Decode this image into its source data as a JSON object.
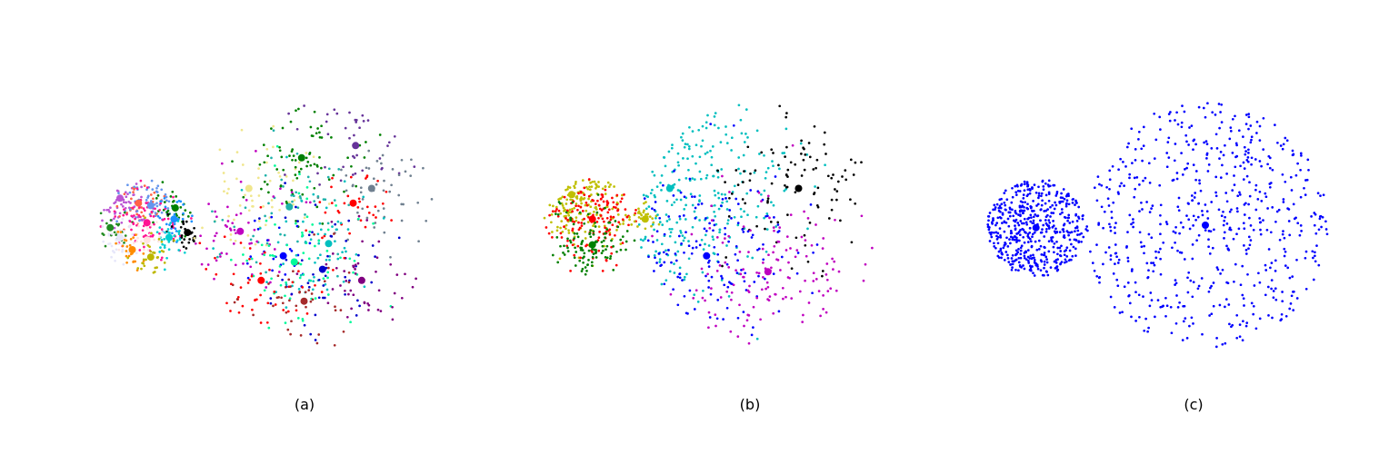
{
  "chart_data": [
    {
      "type": "scatter",
      "label": "(a)",
      "point_size": "small",
      "center_size": "large",
      "clusters": [
        {
          "color": "#ba55d3",
          "center": [
            -1.6,
            -0.22
          ],
          "cloud": "small",
          "spread": 0.12,
          "n": 50
        },
        {
          "color": "#ff6347",
          "center": [
            -1.45,
            -0.18
          ],
          "cloud": "small",
          "spread": 0.1,
          "n": 35
        },
        {
          "color": "#6495ed",
          "center": [
            -1.35,
            -0.16
          ],
          "cloud": "small",
          "spread": 0.12,
          "n": 55
        },
        {
          "color": "#008000",
          "center": [
            -1.15,
            -0.14
          ],
          "cloud": "small",
          "spread": 0.1,
          "n": 35
        },
        {
          "color": "#ff1493",
          "center": [
            -1.38,
            -0.02
          ],
          "cloud": "small",
          "spread": 0.13,
          "n": 75
        },
        {
          "color": "#1e90ff",
          "center": [
            -1.16,
            -0.05
          ],
          "cloud": "small",
          "spread": 0.08,
          "n": 30
        },
        {
          "color": "#000000",
          "center": [
            -1.05,
            0.06
          ],
          "cloud": "small",
          "spread": 0.08,
          "n": 35
        },
        {
          "color": "#00ced1",
          "center": [
            -1.2,
            0.1
          ],
          "cloud": "small",
          "spread": 0.08,
          "n": 30
        },
        {
          "color": "#228b22",
          "center": [
            -1.68,
            0.02
          ],
          "cloud": "small",
          "spread": 0.08,
          "n": 20
        },
        {
          "color": "#e6e6fa",
          "center": [
            -1.6,
            0.1
          ],
          "cloud": "small",
          "spread": 0.09,
          "n": 40
        },
        {
          "color": "#ffe4e1",
          "center": [
            -1.38,
            0.12
          ],
          "cloud": "small",
          "spread": 0.08,
          "n": 25
        },
        {
          "color": "#ff8c00",
          "center": [
            -1.5,
            0.2
          ],
          "cloud": "small",
          "spread": 0.07,
          "n": 25
        },
        {
          "color": "#bdb700",
          "center": [
            -1.35,
            0.26
          ],
          "cloud": "small",
          "spread": 0.08,
          "n": 30
        },
        {
          "color": "#f0e68c",
          "center": [
            -0.55,
            -0.3
          ],
          "cloud": "large",
          "spread": 0.28,
          "n": 60
        },
        {
          "color": "#008000",
          "center": [
            -0.12,
            -0.55
          ],
          "cloud": "large",
          "spread": 0.3,
          "n": 75
        },
        {
          "color": "#663399",
          "center": [
            0.32,
            -0.65
          ],
          "cloud": "large",
          "spread": 0.22,
          "n": 40
        },
        {
          "color": "#708090",
          "center": [
            0.45,
            -0.3
          ],
          "cloud": "large",
          "spread": 0.24,
          "n": 50
        },
        {
          "color": "#ff0000",
          "center": [
            0.3,
            -0.18
          ],
          "cloud": "large",
          "spread": 0.14,
          "n": 30
        },
        {
          "color": "#20b2aa",
          "center": [
            -0.22,
            -0.15
          ],
          "cloud": "large",
          "spread": 0.28,
          "n": 55
        },
        {
          "color": "#c000c0",
          "center": [
            -0.62,
            0.05
          ],
          "cloud": "large",
          "spread": 0.25,
          "n": 55
        },
        {
          "color": "#0000ff",
          "center": [
            -0.27,
            0.25
          ],
          "cloud": "large",
          "spread": 0.15,
          "n": 25
        },
        {
          "color": "#00fa9a",
          "center": [
            -0.18,
            0.3
          ],
          "cloud": "large",
          "spread": 0.3,
          "n": 70
        },
        {
          "color": "#00bfbf",
          "center": [
            0.1,
            0.15
          ],
          "cloud": "large",
          "spread": 0.25,
          "n": 55
        },
        {
          "color": "#0000cd",
          "center": [
            0.05,
            0.36
          ],
          "cloud": "large",
          "spread": 0.24,
          "n": 50
        },
        {
          "color": "#800080",
          "center": [
            0.37,
            0.45
          ],
          "cloud": "large",
          "spread": 0.22,
          "n": 45
        },
        {
          "color": "#ff0000",
          "center": [
            -0.45,
            0.45
          ],
          "cloud": "large",
          "spread": 0.25,
          "n": 50
        },
        {
          "color": "#a52a2a",
          "center": [
            -0.1,
            0.62
          ],
          "cloud": "large",
          "spread": 0.22,
          "n": 45
        }
      ]
    },
    {
      "type": "scatter",
      "label": "(b)",
      "point_size": "small",
      "center_size": "large",
      "clusters": [
        {
          "color": "#bfbf00",
          "center": [
            -1.55,
            -0.25
          ],
          "cloud": "small",
          "spread": 0.2,
          "n": 170
        },
        {
          "color": "#ff0000",
          "center": [
            -1.38,
            -0.05
          ],
          "cloud": "small",
          "spread": 0.2,
          "n": 140
        },
        {
          "color": "#008000",
          "center": [
            -1.38,
            0.16
          ],
          "cloud": "small",
          "spread": 0.16,
          "n": 110
        },
        {
          "color": "#bfbf00",
          "center": [
            -0.95,
            -0.05
          ],
          "cloud": "bridge",
          "spread": 0.1,
          "n": 30
        },
        {
          "color": "#00bfbf",
          "center": [
            -0.75,
            -0.3
          ],
          "cloud": "large",
          "spread": 0.45,
          "n": 260
        },
        {
          "color": "#000000",
          "center": [
            0.3,
            -0.3
          ],
          "cloud": "large",
          "spread": 0.3,
          "n": 100
        },
        {
          "color": "#0000ff",
          "center": [
            -0.45,
            0.25
          ],
          "cloud": "large",
          "spread": 0.35,
          "n": 150
        },
        {
          "color": "#c000c0",
          "center": [
            0.05,
            0.38
          ],
          "cloud": "large",
          "spread": 0.33,
          "n": 140
        }
      ]
    },
    {
      "type": "scatter",
      "label": "(c)",
      "point_size": "small",
      "center_size": "large",
      "clusters": [
        {
          "color": "#0000ff",
          "center": [
            -1.38,
            0.02
          ],
          "cloud": "small",
          "spread": 0.5,
          "n": 520
        },
        {
          "color": "#0000ff",
          "center": [
            0.0,
            0.0
          ],
          "cloud": "large",
          "spread": 0.5,
          "n": 600
        }
      ]
    }
  ]
}
